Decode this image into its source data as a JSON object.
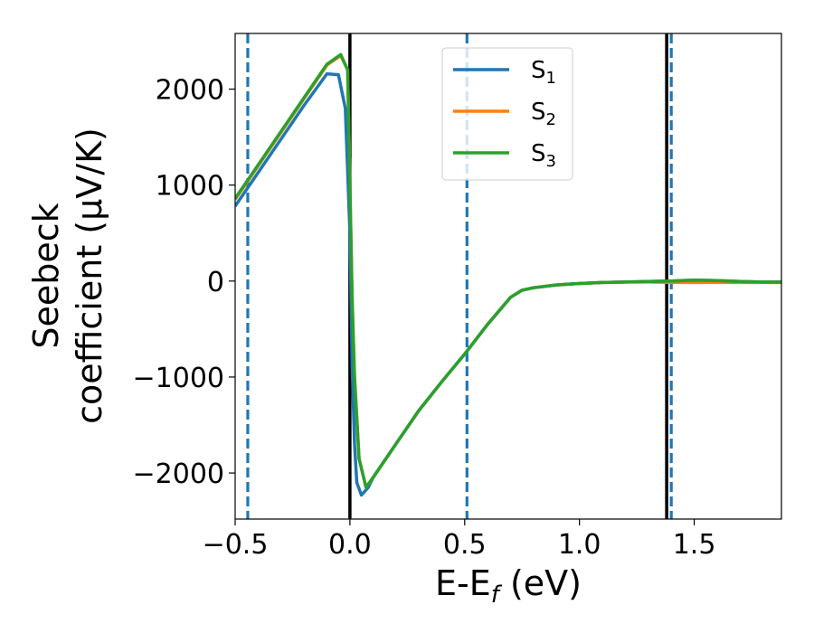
{
  "chart_data": {
    "type": "line",
    "xlabel": "E-E",
    "xlabel_sub": "f",
    "xlabel_unit": " (eV)",
    "ylabel_line1": "Seebeck",
    "ylabel_line2": "coefficient  (μV/K)",
    "xlim": [
      -0.5,
      1.88
    ],
    "ylim": [
      -2480,
      2580
    ],
    "xticks": [
      -0.5,
      0.0,
      0.5,
      1.0,
      1.5
    ],
    "xtick_labels": [
      "−0.5",
      "0.0",
      "0.5",
      "1.0",
      "1.5"
    ],
    "yticks": [
      -2000,
      -1000,
      0,
      1000,
      2000
    ],
    "ytick_labels": [
      "−2000",
      "−1000",
      "0",
      "1000",
      "2000"
    ],
    "grid": false,
    "legend_position": "top-center",
    "series": [
      {
        "name": "S",
        "sub": "1",
        "color": "#1f77b4",
        "x": [
          -0.5,
          -0.4,
          -0.3,
          -0.2,
          -0.1,
          -0.05,
          -0.02,
          0.0,
          0.01,
          0.02,
          0.03,
          0.05,
          0.08,
          0.1,
          0.2,
          0.3,
          0.4,
          0.5,
          0.6,
          0.7,
          0.75,
          0.8,
          0.9,
          1.0,
          1.1,
          1.2,
          1.3,
          1.4,
          1.5,
          1.6,
          1.7,
          1.8,
          1.88
        ],
        "values": [
          780,
          1130,
          1480,
          1830,
          2160,
          2150,
          1800,
          500,
          -900,
          -1700,
          -2100,
          -2230,
          -2150,
          -2050,
          -1700,
          -1350,
          -1050,
          -760,
          -450,
          -170,
          -95,
          -70,
          -40,
          -25,
          -15,
          -10,
          -5,
          0,
          10,
          5,
          -5,
          -10,
          -10
        ]
      },
      {
        "name": "S",
        "sub": "2",
        "color": "#ff7f0e",
        "x": [
          -0.5,
          -0.4,
          -0.3,
          -0.2,
          -0.1,
          -0.04,
          -0.01,
          0.0,
          0.01,
          0.02,
          0.04,
          0.07,
          0.1,
          0.2,
          0.3,
          0.4,
          0.5,
          0.6,
          0.7,
          0.75,
          0.8,
          0.9,
          1.0,
          1.1,
          1.2,
          1.3,
          1.4,
          1.5,
          1.6,
          1.7,
          1.8,
          1.88
        ],
        "values": [
          850,
          1200,
          1550,
          1900,
          2250,
          2350,
          2200,
          1000,
          -200,
          -1000,
          -1850,
          -2150,
          -2050,
          -1700,
          -1350,
          -1050,
          -760,
          -450,
          -170,
          -95,
          -70,
          -40,
          -25,
          -15,
          -10,
          -10,
          -15,
          -15,
          -15,
          -15,
          -15,
          -15
        ]
      },
      {
        "name": "S",
        "sub": "3",
        "color": "#2ca02c",
        "x": [
          -0.5,
          -0.4,
          -0.3,
          -0.2,
          -0.1,
          -0.04,
          -0.01,
          0.0,
          0.01,
          0.02,
          0.04,
          0.07,
          0.1,
          0.2,
          0.3,
          0.4,
          0.5,
          0.6,
          0.7,
          0.75,
          0.8,
          0.9,
          1.0,
          1.1,
          1.2,
          1.3,
          1.4,
          1.5,
          1.6,
          1.7,
          1.8,
          1.88
        ],
        "values": [
          860,
          1210,
          1560,
          1910,
          2260,
          2360,
          2200,
          1000,
          -200,
          -1000,
          -1850,
          -2150,
          -2050,
          -1700,
          -1350,
          -1050,
          -760,
          -450,
          -170,
          -95,
          -70,
          -40,
          -25,
          -15,
          -10,
          -5,
          0,
          10,
          5,
          -5,
          -10,
          -10
        ]
      }
    ],
    "vlines": [
      {
        "x": -0.445,
        "style": "dashed",
        "color": "#1f77b4"
      },
      {
        "x": 0.0,
        "style": "solid",
        "color": "#000000"
      },
      {
        "x": 0.51,
        "style": "dashed",
        "color": "#1f77b4"
      },
      {
        "x": 1.38,
        "style": "solid",
        "color": "#000000"
      },
      {
        "x": 1.4,
        "style": "dashed",
        "color": "#1f77b4"
      }
    ]
  }
}
